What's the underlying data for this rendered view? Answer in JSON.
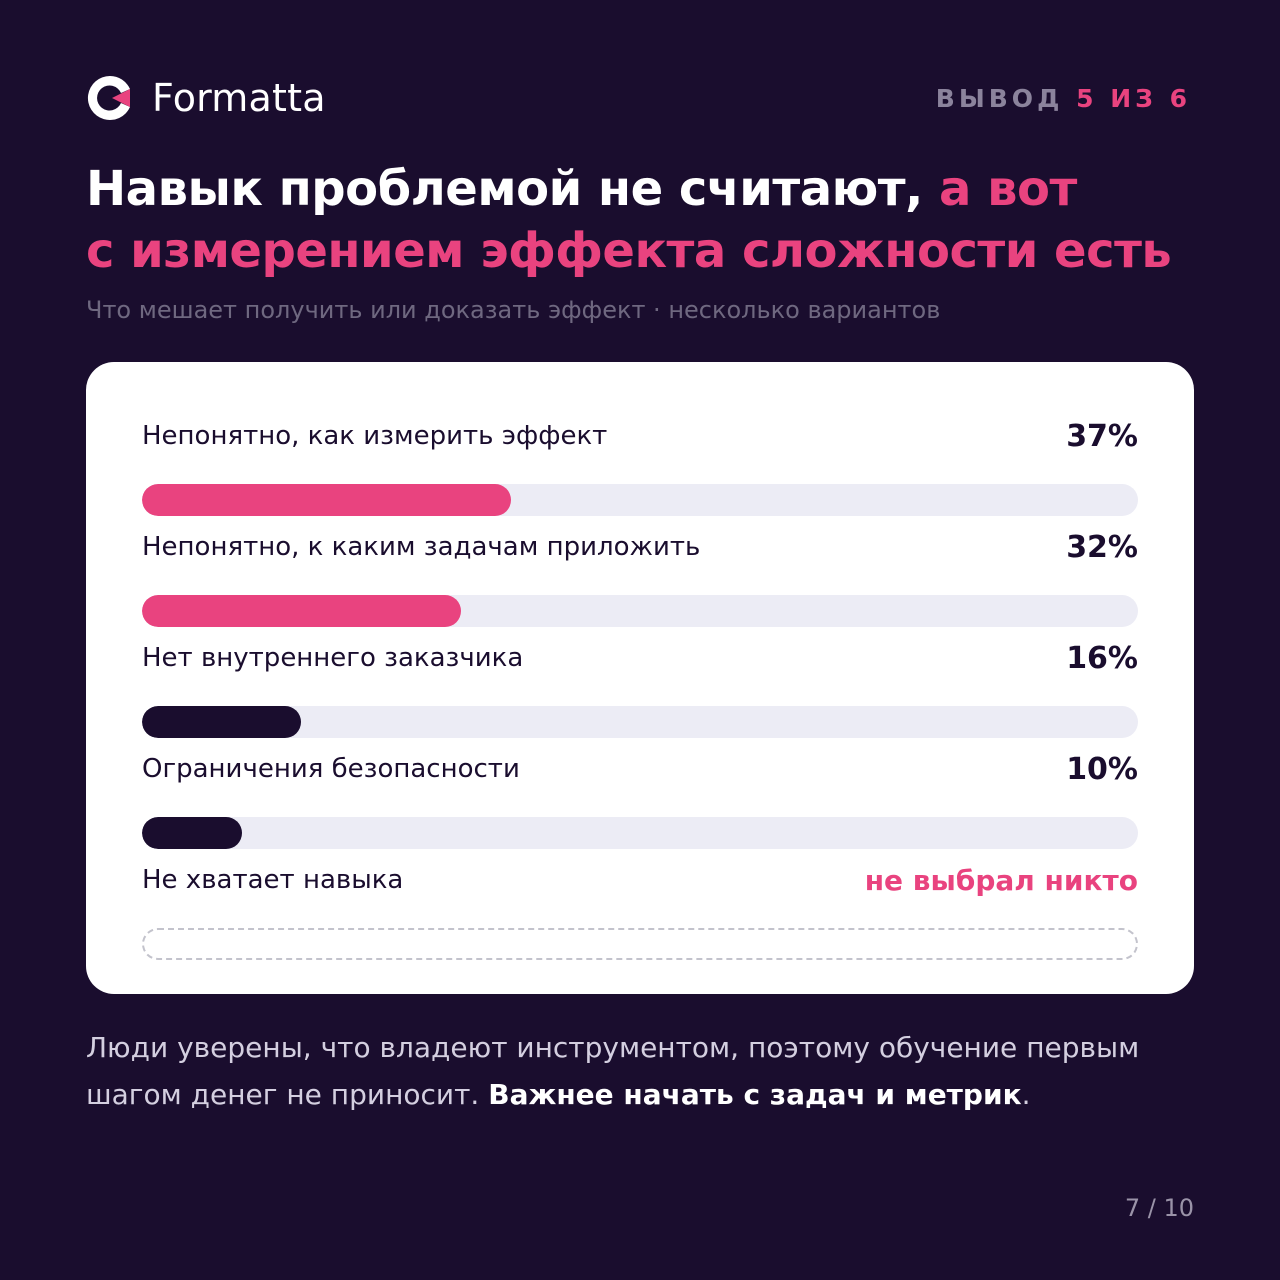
{
  "brand": {
    "name": "Formatta",
    "accent": "#e9437f",
    "dark": "#1a0d2e"
  },
  "counter": {
    "prefix": "ВЫВОД",
    "current": "5",
    "sep": "ИЗ",
    "total": "6"
  },
  "headline": {
    "white": "Навык проблемой не считают,",
    "pink_1": "а вот",
    "pink_2": "с измерением эффекта сложности есть"
  },
  "subtitle": "Что мешает получить или доказать эффект · несколько вариантов",
  "chart_data": {
    "type": "bar",
    "orientation": "horizontal",
    "xlim": [
      0,
      100
    ],
    "categories": [
      "Непонятно, как измерить эффект",
      "Непонятно, к каким задачам приложить",
      "Нет внутреннего заказчика",
      "Ограничения безопасности",
      "Не хватает навыка"
    ],
    "values": [
      37,
      32,
      16,
      10,
      0
    ],
    "value_labels": [
      "37%",
      "32%",
      "16%",
      "10%",
      "не выбрал никто"
    ],
    "colors": [
      "#e9437f",
      "#e9437f",
      "#1a0d2e",
      "#1a0d2e",
      "#c3c3cc"
    ],
    "track_color": "#ececf5"
  },
  "conclusion": {
    "text": "Люди уверены, что владеют инструментом, поэтому обучение первым шагом денег не приносит.",
    "bold": "Важнее начать с задач и метрик",
    "end": "."
  },
  "page": "7 / 10"
}
